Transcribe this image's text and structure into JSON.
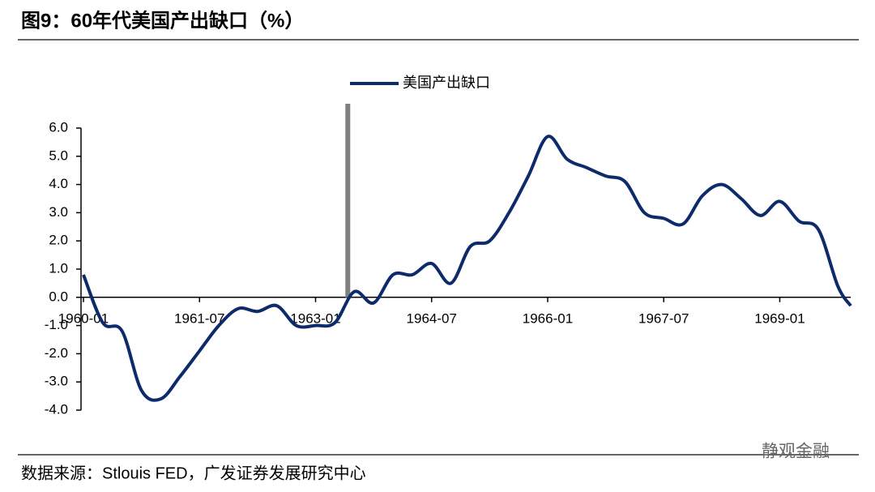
{
  "chart_data": {
    "type": "line",
    "title": "图9：60年代美国产出缺口（%）",
    "source": "数据来源：Stlouis FED，广发证券发展研究中心",
    "watermark": "静观金融",
    "x": [
      "1960-01",
      "1960-04",
      "1960-07",
      "1960-10",
      "1961-01",
      "1961-04",
      "1961-07",
      "1961-10",
      "1962-01",
      "1962-04",
      "1962-07",
      "1962-10",
      "1963-01",
      "1963-04",
      "1963-07",
      "1963-10",
      "1964-01",
      "1964-04",
      "1964-07",
      "1964-10",
      "1965-01",
      "1965-04",
      "1965-07",
      "1965-10",
      "1966-01",
      "1966-04",
      "1966-07",
      "1966-10",
      "1967-01",
      "1967-04",
      "1967-07",
      "1967-10",
      "1968-01",
      "1968-04",
      "1968-07",
      "1968-10",
      "1969-01",
      "1969-04",
      "1969-07",
      "1969-10",
      "1969-12"
    ],
    "series": [
      {
        "name": "美国产出缺口",
        "color": "#0d2a6b",
        "values": [
          0.8,
          -0.9,
          -1.2,
          -3.3,
          -3.6,
          -2.8,
          -1.9,
          -1.0,
          -0.4,
          -0.5,
          -0.3,
          -1.0,
          -1.0,
          -0.9,
          0.2,
          -0.2,
          0.8,
          0.8,
          1.2,
          0.5,
          1.8,
          2.0,
          3.0,
          4.3,
          5.7,
          4.9,
          4.6,
          4.3,
          4.1,
          3.0,
          2.8,
          2.6,
          3.6,
          4.0,
          3.5,
          2.9,
          3.4,
          2.7,
          2.4,
          0.4,
          -0.3
        ]
      }
    ],
    "marker_x": "1963-06",
    "marker_color": "#808080",
    "xlim": [
      "1960-01",
      "1969-12"
    ],
    "xticks": [
      "1960-01",
      "1961-07",
      "1963-01",
      "1964-07",
      "1966-01",
      "1967-07",
      "1969-01"
    ],
    "ylim": [
      -4,
      6
    ],
    "yticks": [
      {
        "value": 6,
        "label": "6.0"
      },
      {
        "value": 5,
        "label": "5.0"
      },
      {
        "value": 4,
        "label": "4.0"
      },
      {
        "value": 3,
        "label": "3.0"
      },
      {
        "value": 2,
        "label": "2.0"
      },
      {
        "value": 1,
        "label": "1.0"
      },
      {
        "value": 0,
        "label": "0.0"
      },
      {
        "value": -1,
        "label": "-1.0"
      },
      {
        "value": -2,
        "label": "-2.0"
      },
      {
        "value": -3,
        "label": "-3.0"
      },
      {
        "value": -4,
        "label": "-4.0"
      }
    ],
    "grid": false
  }
}
